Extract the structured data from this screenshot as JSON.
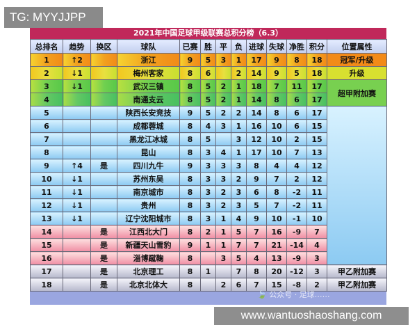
{
  "corner_tag": "TG: MYYJJPP",
  "watermark": "www.wantuoshaoshang.com",
  "wechat_mark": "🍃 公众号 · 足球……",
  "chart_data": {
    "type": "table",
    "title": "2021年中国足球甲级联赛总积分榜（6.3）",
    "columns": [
      "总排名",
      "趋势",
      "换区",
      "球队",
      "已赛",
      "胜",
      "平",
      "负",
      "进球",
      "失球",
      "净胜",
      "积分",
      "位置属性"
    ],
    "rows": [
      {
        "rank": "1",
        "trend": "↑2",
        "trend_dir": "up",
        "zone": "",
        "team": "浙江",
        "played": "9",
        "w": "5",
        "d": "3",
        "l": "1",
        "gf": "17",
        "ga": "9",
        "gd": "8",
        "pts": "18",
        "style": "r1"
      },
      {
        "rank": "2",
        "trend": "↓1",
        "trend_dir": "dn",
        "zone": "",
        "team": "梅州客家",
        "played": "8",
        "w": "6",
        "d": "",
        "l": "2",
        "gf": "14",
        "ga": "9",
        "gd": "5",
        "pts": "18",
        "style": "r2"
      },
      {
        "rank": "3",
        "trend": "↓1",
        "trend_dir": "dn",
        "zone": "",
        "team": "武汉三镇",
        "played": "8",
        "w": "5",
        "d": "2",
        "l": "1",
        "gf": "18",
        "ga": "7",
        "gd": "11",
        "pts": "17",
        "style": "r3"
      },
      {
        "rank": "4",
        "trend": "",
        "trend_dir": "",
        "zone": "",
        "team": "南通支云",
        "played": "8",
        "w": "5",
        "d": "2",
        "l": "1",
        "gf": "14",
        "ga": "8",
        "gd": "6",
        "pts": "17",
        "style": "r4"
      },
      {
        "rank": "5",
        "trend": "",
        "trend_dir": "",
        "zone": "",
        "team": "陕西长安竞技",
        "played": "9",
        "w": "5",
        "d": "2",
        "l": "2",
        "gf": "14",
        "ga": "8",
        "gd": "6",
        "pts": "17",
        "style": "mid"
      },
      {
        "rank": "6",
        "trend": "",
        "trend_dir": "",
        "zone": "",
        "team": "成都蓉城",
        "played": "8",
        "w": "4",
        "d": "3",
        "l": "1",
        "gf": "16",
        "ga": "10",
        "gd": "6",
        "pts": "15",
        "style": "mid"
      },
      {
        "rank": "7",
        "trend": "",
        "trend_dir": "",
        "zone": "",
        "team": "黑龙江冰城",
        "played": "8",
        "w": "5",
        "d": "",
        "l": "3",
        "gf": "12",
        "ga": "10",
        "gd": "2",
        "pts": "15",
        "style": "mid"
      },
      {
        "rank": "8",
        "trend": "",
        "trend_dir": "",
        "zone": "",
        "team": "昆山",
        "played": "8",
        "w": "3",
        "d": "4",
        "l": "1",
        "gf": "17",
        "ga": "10",
        "gd": "7",
        "pts": "13",
        "style": "mid"
      },
      {
        "rank": "9",
        "trend": "↑4",
        "trend_dir": "up",
        "zone": "是",
        "team": "四川九牛",
        "played": "9",
        "w": "3",
        "d": "3",
        "l": "3",
        "gf": "8",
        "ga": "4",
        "gd": "4",
        "pts": "12",
        "style": "mid"
      },
      {
        "rank": "10",
        "trend": "↓1",
        "trend_dir": "dn",
        "zone": "",
        "team": "苏州东吴",
        "played": "8",
        "w": "3",
        "d": "3",
        "l": "2",
        "gf": "9",
        "ga": "7",
        "gd": "2",
        "pts": "12",
        "style": "mid"
      },
      {
        "rank": "11",
        "trend": "↓1",
        "trend_dir": "dn",
        "zone": "",
        "team": "南京城市",
        "played": "8",
        "w": "3",
        "d": "2",
        "l": "3",
        "gf": "6",
        "ga": "8",
        "gd": "-2",
        "pts": "11",
        "style": "mid"
      },
      {
        "rank": "12",
        "trend": "↓1",
        "trend_dir": "dn",
        "zone": "",
        "team": "贵州",
        "played": "8",
        "w": "3",
        "d": "2",
        "l": "3",
        "gf": "5",
        "ga": "7",
        "gd": "-2",
        "pts": "11",
        "style": "mid"
      },
      {
        "rank": "13",
        "trend": "↓1",
        "trend_dir": "dn",
        "zone": "",
        "team": "辽宁沈阳城市",
        "played": "8",
        "w": "3",
        "d": "1",
        "l": "4",
        "gf": "9",
        "ga": "10",
        "gd": "-1",
        "pts": "10",
        "style": "mid"
      },
      {
        "rank": "14",
        "trend": "",
        "trend_dir": "",
        "zone": "是",
        "team": "江西北大门",
        "played": "8",
        "w": "2",
        "d": "1",
        "l": "5",
        "gf": "7",
        "ga": "16",
        "gd": "-9",
        "pts": "7",
        "style": "rel"
      },
      {
        "rank": "15",
        "trend": "",
        "trend_dir": "",
        "zone": "是",
        "team": "新疆天山雪豹",
        "played": "9",
        "w": "1",
        "d": "1",
        "l": "7",
        "gf": "7",
        "ga": "21",
        "gd": "-14",
        "pts": "4",
        "style": "rel"
      },
      {
        "rank": "16",
        "trend": "",
        "trend_dir": "",
        "zone": "是",
        "team": "淄博蹴鞠",
        "played": "8",
        "w": "",
        "d": "3",
        "l": "5",
        "gf": "4",
        "ga": "13",
        "gd": "-9",
        "pts": "3",
        "style": "rel"
      },
      {
        "rank": "17",
        "trend": "",
        "trend_dir": "",
        "zone": "是",
        "team": "北京理工",
        "played": "8",
        "w": "1",
        "d": "",
        "l": "7",
        "gf": "8",
        "ga": "20",
        "gd": "-12",
        "pts": "3",
        "style": "bot"
      },
      {
        "rank": "18",
        "trend": "",
        "trend_dir": "",
        "zone": "是",
        "team": "北京北体大",
        "played": "8",
        "w": "",
        "d": "2",
        "l": "6",
        "gf": "7",
        "ga": "15",
        "gd": "-8",
        "pts": "2",
        "style": "bot"
      }
    ],
    "attributes": [
      {
        "label": "冠军/升级",
        "start": 0,
        "span": 1,
        "color": "#f28a18"
      },
      {
        "label": "升级",
        "start": 1,
        "span": 1,
        "color": "#d8e030"
      },
      {
        "label": "超甲附加赛",
        "start": 2,
        "span": 2,
        "color": "#78d050"
      },
      {
        "label": "",
        "start": 4,
        "span": 12,
        "color": ""
      },
      {
        "label": "甲乙附加赛",
        "start": 16,
        "span": 1,
        "color": ""
      },
      {
        "label": "甲乙附加赛",
        "start": 17,
        "span": 1,
        "color": ""
      }
    ]
  }
}
